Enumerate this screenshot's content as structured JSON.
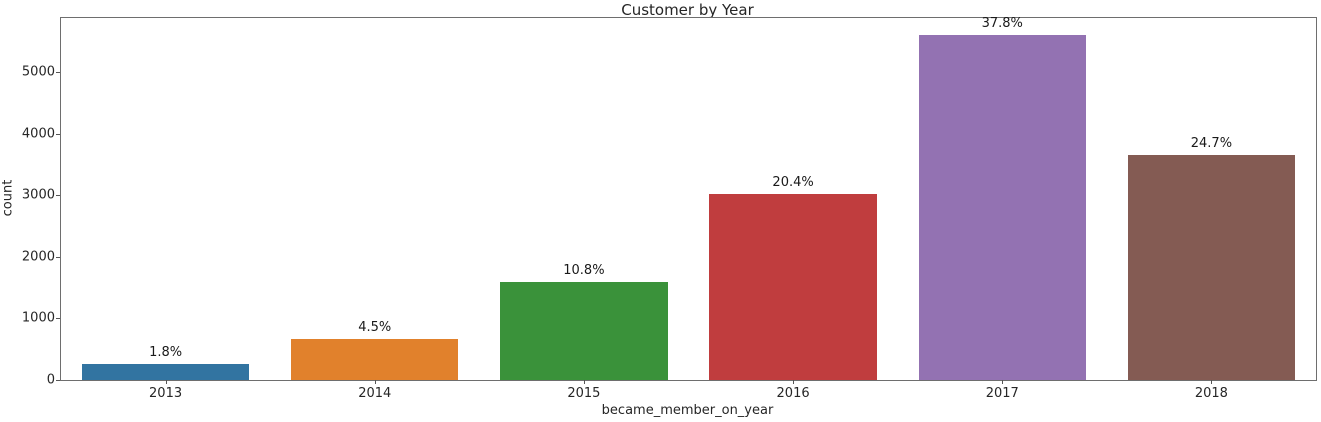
{
  "figure": {
    "background": "#ffffff",
    "spine_color": "#6e6e6e",
    "text_color": "#262626"
  },
  "chart_data": {
    "type": "bar",
    "title": "Customer by Year",
    "xlabel": "became_member_on_year",
    "ylabel": "count",
    "categories": [
      "2013",
      "2014",
      "2015",
      "2016",
      "2017",
      "2018"
    ],
    "values": [
      267,
      667,
      1601,
      3024,
      5604,
      3662
    ],
    "bar_labels": [
      "1.8%",
      "4.5%",
      "10.8%",
      "20.4%",
      "37.8%",
      "24.7%"
    ],
    "bar_colors": [
      "#3274a1",
      "#e1812c",
      "#3a923a",
      "#c03d3e",
      "#9372b2",
      "#845b53"
    ],
    "yticks": [
      0,
      1000,
      2000,
      3000,
      4000,
      5000
    ],
    "ylim": [
      0,
      5884
    ],
    "bar_width_fraction": 0.8,
    "grid": "off",
    "legend": "none"
  }
}
